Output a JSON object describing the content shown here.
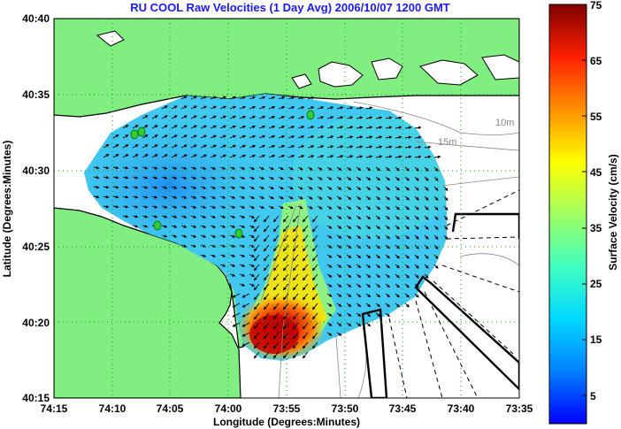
{
  "title": "RU COOL Raw Velocities (1 Day Avg) 2006/10/07 1200 GMT",
  "x_axis": {
    "label": "Longitude (Degrees:Minutes)",
    "ticks": [
      "74:15",
      "74:10",
      "74:05",
      "74:00",
      "73:55",
      "73:50",
      "73:45",
      "73:40",
      "73:35"
    ]
  },
  "y_axis": {
    "label": "Latitude (Degrees:Minutes)",
    "ticks": [
      "40:40",
      "40:35",
      "40:30",
      "40:25",
      "40:20",
      "40:15"
    ]
  },
  "colorbar": {
    "label": "Surface Velocity (cm/s)",
    "ticks": [
      "75",
      "65",
      "55",
      "45",
      "35",
      "25",
      "15",
      "5"
    ],
    "range": [
      0,
      75
    ]
  },
  "depth_labels": [
    "10m",
    "15m"
  ],
  "colors": {
    "land": "#80ee80",
    "title": "#1a1aff",
    "grid": "#00aa00"
  }
}
